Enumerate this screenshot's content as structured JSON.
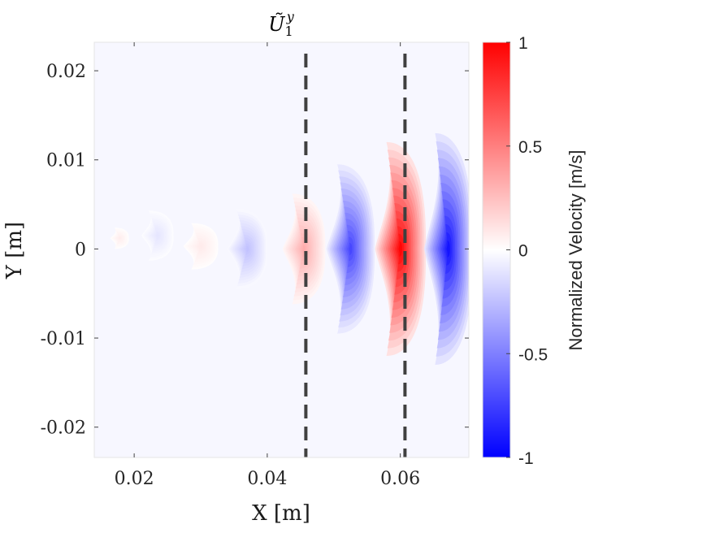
{
  "chart_data": {
    "type": "heatmap",
    "title": {
      "base": "Ũ",
      "sub": "1",
      "sup": "y"
    },
    "xlabel": "X [m]",
    "ylabel": "Y [m]",
    "xlim": [
      0.014,
      0.0703
    ],
    "ylim": [
      -0.0234,
      0.0232
    ],
    "xticks": [
      {
        "value": 0.02,
        "label": "0.02"
      },
      {
        "value": 0.04,
        "label": "0.04"
      },
      {
        "value": 0.06,
        "label": "0.06"
      }
    ],
    "yticks": [
      {
        "value": 0.02,
        "label": "0.02"
      },
      {
        "value": 0.01,
        "label": "0.01"
      },
      {
        "value": 0,
        "label": "0"
      },
      {
        "value": -0.01,
        "label": "-0.01"
      },
      {
        "value": -0.02,
        "label": "-0.02"
      }
    ],
    "colorbar": {
      "label": "Normalized Velocity [m/s]",
      "range": [
        -1,
        1
      ],
      "ticks": [
        {
          "value": 1,
          "label": "1"
        },
        {
          "value": 0.5,
          "label": "0.5"
        },
        {
          "value": 0,
          "label": "0"
        },
        {
          "value": -0.5,
          "label": "-0.5"
        },
        {
          "value": -1,
          "label": "-1"
        }
      ],
      "colors": {
        "negative": "#0000ff",
        "zero": "#ffffff",
        "positive": "#ff0000"
      }
    },
    "background_value": -0.03,
    "dashed_lines_x": [
      0.0458,
      0.0607
    ],
    "dashed_line_color": "#404040",
    "lobes": [
      {
        "cx": 0.0178,
        "cy": 0.0012,
        "rx": 0.0014,
        "ry": 0.0012,
        "value": 0.07
      },
      {
        "cx": 0.0235,
        "cy": 0.0015,
        "rx": 0.0024,
        "ry": 0.0028,
        "value": -0.1
      },
      {
        "cx": 0.03,
        "cy": 0.0003,
        "rx": 0.0026,
        "ry": 0.0026,
        "value": 0.08
      },
      {
        "cx": 0.037,
        "cy": 0.0,
        "rx": 0.003,
        "ry": 0.0045,
        "value": -0.24
      },
      {
        "cx": 0.0455,
        "cy": 0.0,
        "rx": 0.0032,
        "ry": 0.0062,
        "value": 0.32
      },
      {
        "cx": 0.0525,
        "cy": 0.0,
        "rx": 0.0036,
        "ry": 0.0095,
        "value": -0.72
      },
      {
        "cx": 0.06,
        "cy": 0.0,
        "rx": 0.0038,
        "ry": 0.012,
        "value": 0.98
      },
      {
        "cx": 0.0672,
        "cy": 0.0,
        "rx": 0.0036,
        "ry": 0.013,
        "value": -0.92
      }
    ]
  }
}
